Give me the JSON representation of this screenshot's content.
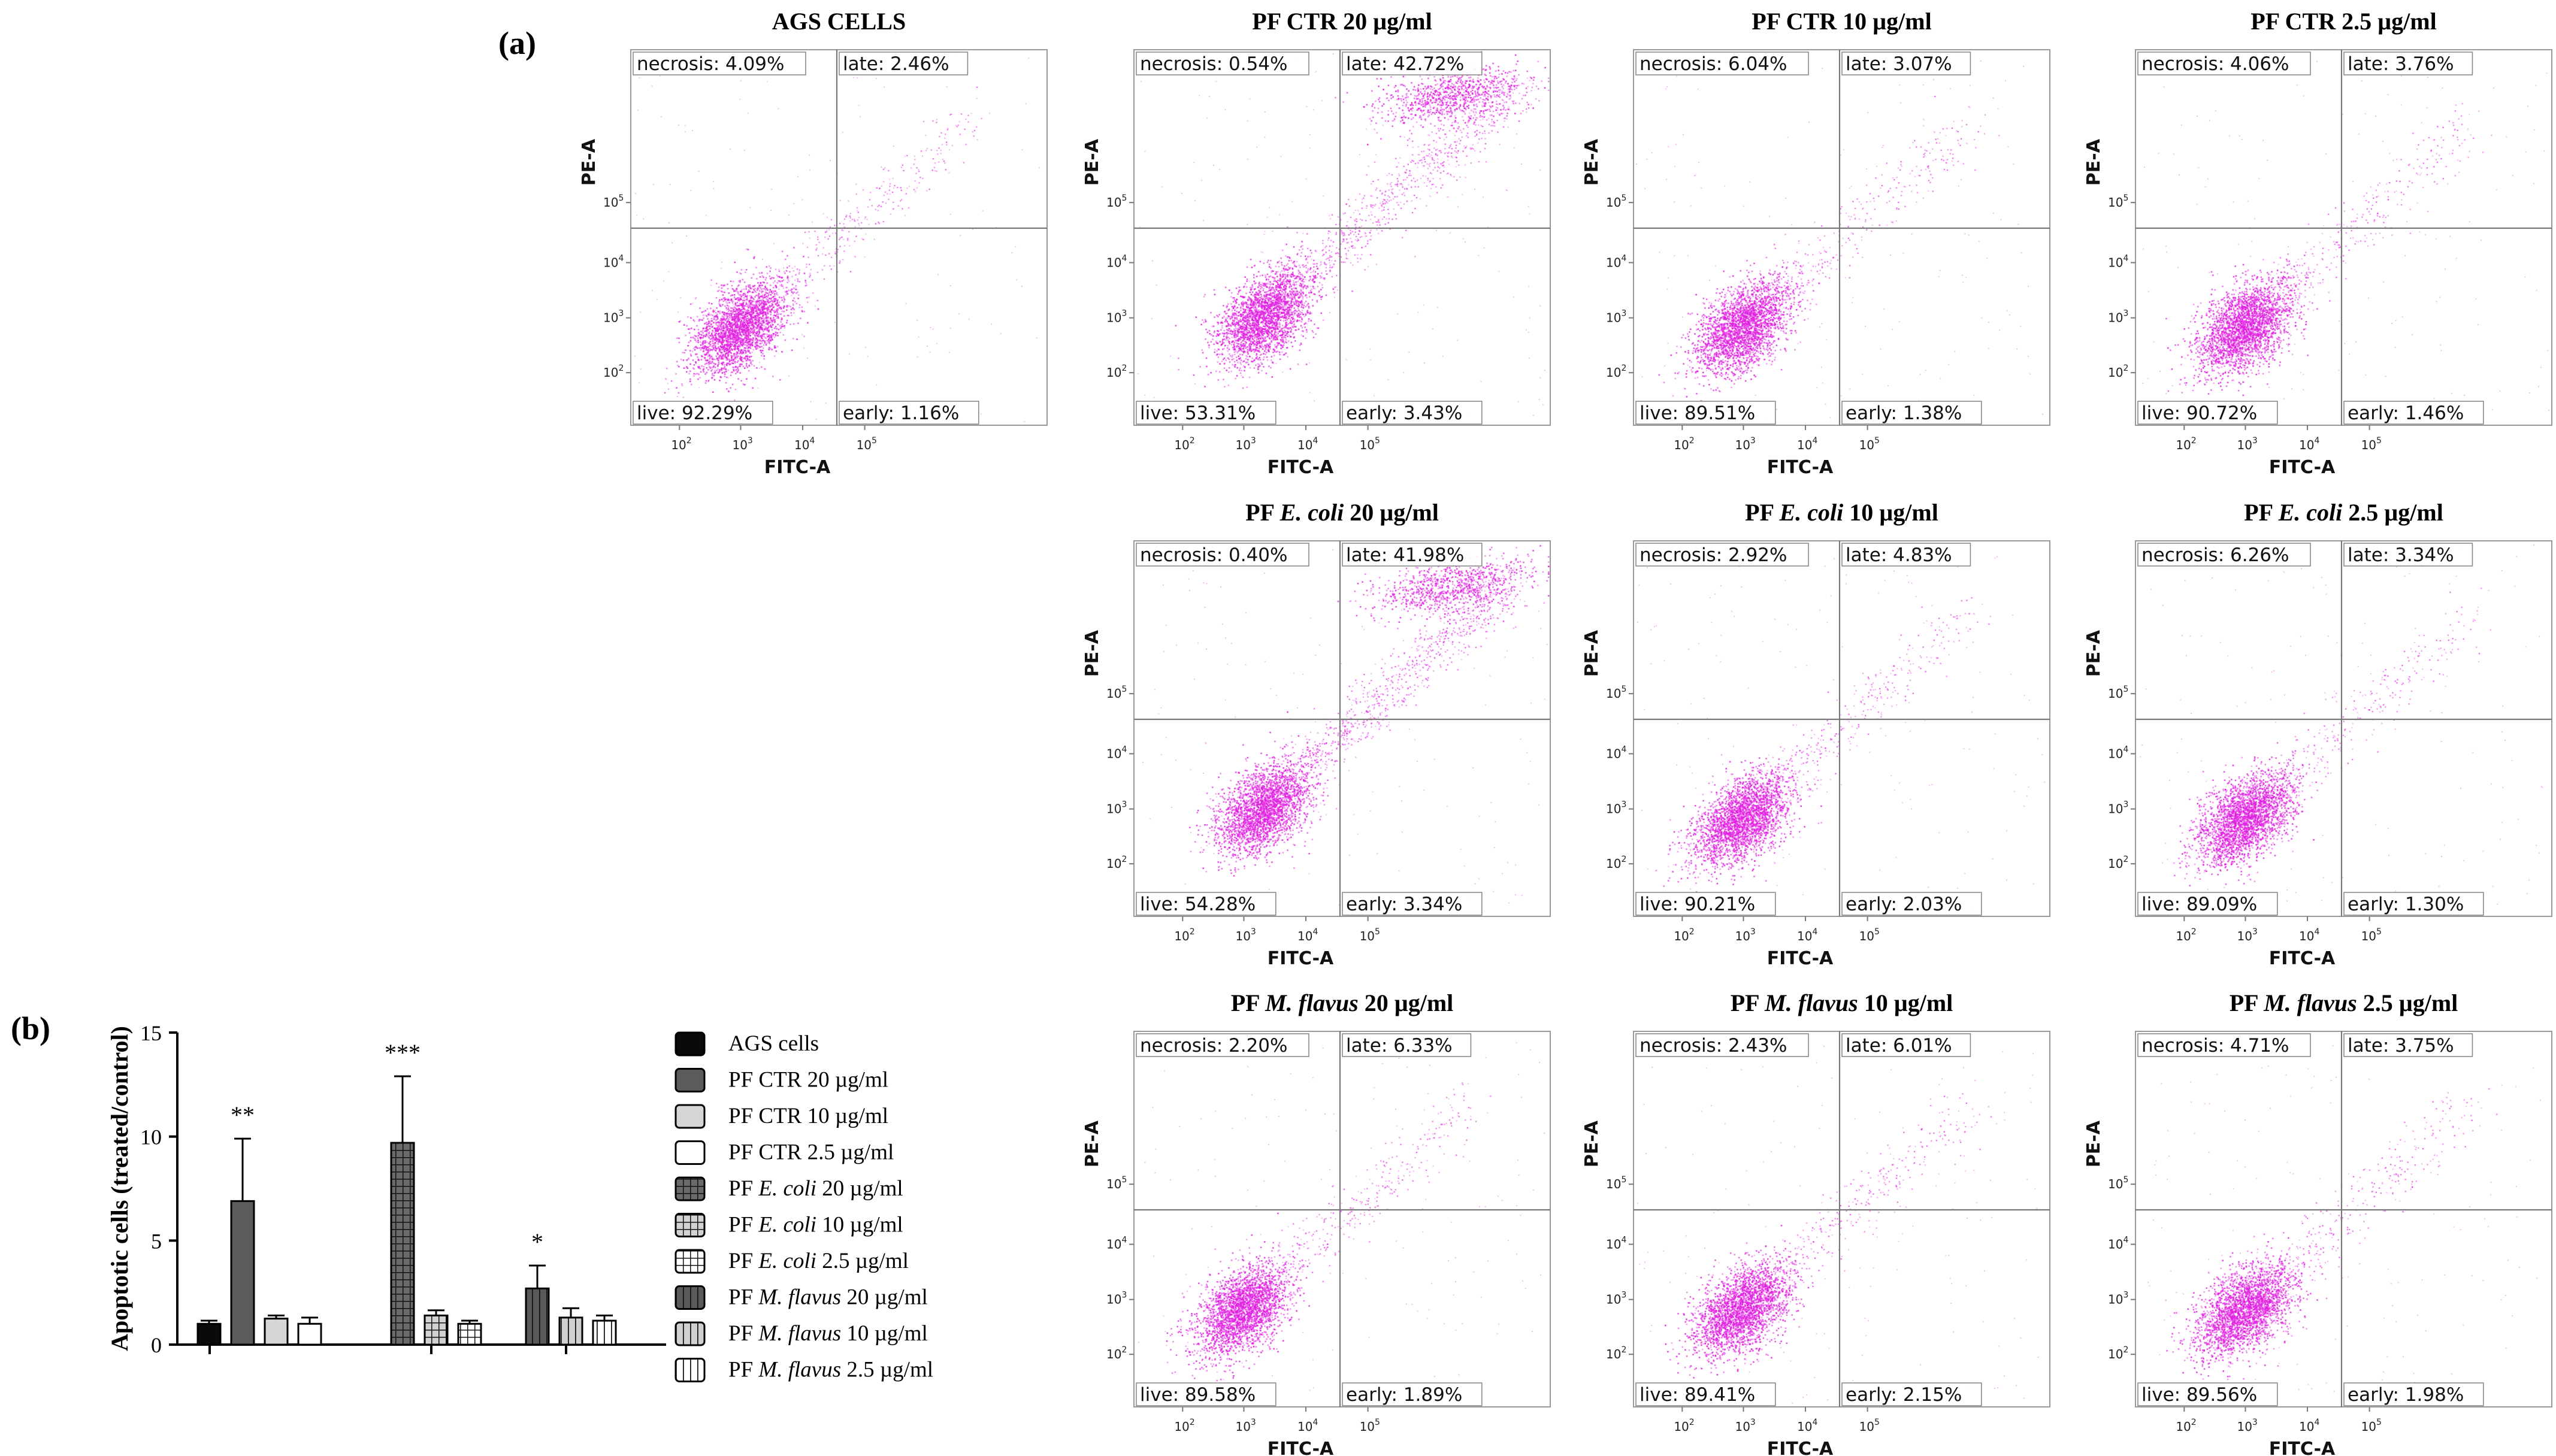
{
  "figure": {
    "label_a": "(a)",
    "label_b": "(b)"
  },
  "flow": {
    "x_axis_label": "FITC-A",
    "y_axis_label": "PE-A",
    "ticks_x": [
      "10",
      "10",
      "10",
      "10"
    ],
    "ticks_x_exp": [
      "2",
      "3",
      "4",
      "5"
    ],
    "ticks_y": [
      "10",
      "10",
      "10",
      "10"
    ],
    "ticks_y_exp": [
      "2",
      "3",
      "4",
      "5"
    ],
    "dot_color": "#e01ee0",
    "panels": [
      {
        "title": "AGS CELLS",
        "title_parts": [
          [
            "AGS CELLS",
            false
          ]
        ],
        "necrosis": "necrosis: 4.09%",
        "late": "late: 2.46%",
        "live": "live: 92.29%",
        "early": "early: 1.16%"
      },
      {
        "title": "PF CTR 20 µg/ml",
        "title_parts": [
          [
            "PF CTR 20 µg/ml",
            false
          ]
        ],
        "necrosis": "necrosis: 0.54%",
        "late": "late: 42.72%",
        "live": "live: 53.31%",
        "early": "early: 3.43%"
      },
      {
        "title": "PF CTR 10 µg/ml",
        "title_parts": [
          [
            "PF CTR 10 µg/ml",
            false
          ]
        ],
        "necrosis": "necrosis: 6.04%",
        "late": "late: 3.07%",
        "live": "live: 89.51%",
        "early": "early: 1.38%"
      },
      {
        "title": "PF CTR 2.5 µg/ml",
        "title_parts": [
          [
            "PF CTR 2.5 µg/ml",
            false
          ]
        ],
        "necrosis": "necrosis: 4.06%",
        "late": "late: 3.76%",
        "live": "live: 90.72%",
        "early": "early: 1.46%"
      },
      {
        "title": "PF E. coli 20 µg/ml",
        "title_parts": [
          [
            "PF ",
            false
          ],
          [
            "E. coli",
            true
          ],
          [
            " 20 µg/ml",
            false
          ]
        ],
        "necrosis": "necrosis: 0.40%",
        "late": "late: 41.98%",
        "live": "live: 54.28%",
        "early": "early: 3.34%"
      },
      {
        "title": "PF E. coli 10 µg/ml",
        "title_parts": [
          [
            "PF ",
            false
          ],
          [
            "E. coli",
            true
          ],
          [
            " 10 µg/ml",
            false
          ]
        ],
        "necrosis": "necrosis: 2.92%",
        "late": "late: 4.83%",
        "live": "live: 90.21%",
        "early": "early: 2.03%"
      },
      {
        "title": "PF E. coli 2.5 µg/ml",
        "title_parts": [
          [
            "PF ",
            false
          ],
          [
            "E. coli",
            true
          ],
          [
            " 2.5 µg/ml",
            false
          ]
        ],
        "necrosis": "necrosis: 6.26%",
        "late": "late: 3.34%",
        "live": "live: 89.09%",
        "early": "early: 1.30%"
      },
      {
        "title": "PF M. flavus 20 µg/ml",
        "title_parts": [
          [
            "PF ",
            false
          ],
          [
            "M. flavus",
            true
          ],
          [
            " 20 µg/ml",
            false
          ]
        ],
        "necrosis": "necrosis: 2.20%",
        "late": "late: 6.33%",
        "live": "live: 89.58%",
        "early": "early: 1.89%"
      },
      {
        "title": "PF M. flavus 10 µg/ml",
        "title_parts": [
          [
            "PF ",
            false
          ],
          [
            "M. flavus",
            true
          ],
          [
            " 10 µg/ml",
            false
          ]
        ],
        "necrosis": "necrosis: 2.43%",
        "late": "late: 6.01%",
        "live": "live: 89.41%",
        "early": "early: 2.15%"
      },
      {
        "title": "PF M. flavus 2.5 µg/ml",
        "title_parts": [
          [
            "PF ",
            false
          ],
          [
            "M. flavus",
            true
          ],
          [
            " 2.5 µg/ml",
            false
          ]
        ],
        "necrosis": "necrosis: 4.71%",
        "late": "late: 3.75%",
        "live": "live: 89.56%",
        "early": "early: 1.98%"
      }
    ]
  },
  "chart_data": {
    "type": "bar",
    "ylabel": "Apoptotic cells (treated/control)",
    "xlabel": "",
    "ylim": [
      0,
      15
    ],
    "yticks": [
      "0",
      "5",
      "10",
      "15"
    ],
    "groups": [
      {
        "bars": [
          0,
          1,
          2,
          3
        ]
      },
      {
        "bars": [
          4,
          5,
          6
        ]
      },
      {
        "bars": [
          7,
          8,
          9
        ]
      }
    ],
    "series": [
      {
        "name": "AGS cells",
        "name_parts": [
          [
            "AGS cells",
            false
          ]
        ],
        "value": 1.0,
        "error": 0.15,
        "sig": "",
        "fill": "solid-black"
      },
      {
        "name": "PF CTR 20 µg/ml",
        "name_parts": [
          [
            "PF CTR 20 µg/ml",
            false
          ]
        ],
        "value": 6.9,
        "error": 3.0,
        "sig": "**",
        "fill": "solid-darkgray"
      },
      {
        "name": "PF CTR 10 µg/ml",
        "name_parts": [
          [
            "PF CTR 10 µg/ml",
            false
          ]
        ],
        "value": 1.25,
        "error": 0.15,
        "sig": "",
        "fill": "solid-lightgray"
      },
      {
        "name": "PF CTR 2.5 µg/ml",
        "name_parts": [
          [
            "PF CTR 2.5 µg/ml",
            false
          ]
        ],
        "value": 1.0,
        "error": 0.3,
        "sig": "",
        "fill": "white"
      },
      {
        "name": "PF E. coli 20 µg/ml",
        "name_parts": [
          [
            "PF ",
            false
          ],
          [
            "E. coli",
            true
          ],
          [
            " 20 µg/ml",
            false
          ]
        ],
        "value": 9.7,
        "error": 3.2,
        "sig": "***",
        "fill": "grid-dark"
      },
      {
        "name": "PF E. coli 10 µg/ml",
        "name_parts": [
          [
            "PF ",
            false
          ],
          [
            "E. coli",
            true
          ],
          [
            " 10 µg/ml",
            false
          ]
        ],
        "value": 1.4,
        "error": 0.25,
        "sig": "",
        "fill": "grid-light"
      },
      {
        "name": "PF E. coli 2.5 µg/ml",
        "name_parts": [
          [
            "PF ",
            false
          ],
          [
            "E. coli",
            true
          ],
          [
            " 2.5 µg/ml",
            false
          ]
        ],
        "value": 1.0,
        "error": 0.15,
        "sig": "",
        "fill": "grid-white"
      },
      {
        "name": "PF M. flavus 20 µg/ml",
        "name_parts": [
          [
            "PF ",
            false
          ],
          [
            "M. flavus",
            true
          ],
          [
            " 20 µg/ml",
            false
          ]
        ],
        "value": 2.7,
        "error": 1.1,
        "sig": "*",
        "fill": "vline-dark"
      },
      {
        "name": "PF M. flavus 10 µg/ml",
        "name_parts": [
          [
            "PF ",
            false
          ],
          [
            "M. flavus",
            true
          ],
          [
            " 10 µg/ml",
            false
          ]
        ],
        "value": 1.3,
        "error": 0.45,
        "sig": "",
        "fill": "vline-light"
      },
      {
        "name": "PF M. flavus 2.5 µg/ml",
        "name_parts": [
          [
            "PF ",
            false
          ],
          [
            "M. flavus",
            true
          ],
          [
            " 2.5 µg/ml",
            false
          ]
        ],
        "value": 1.15,
        "error": 0.25,
        "sig": "",
        "fill": "vline-white"
      }
    ]
  }
}
